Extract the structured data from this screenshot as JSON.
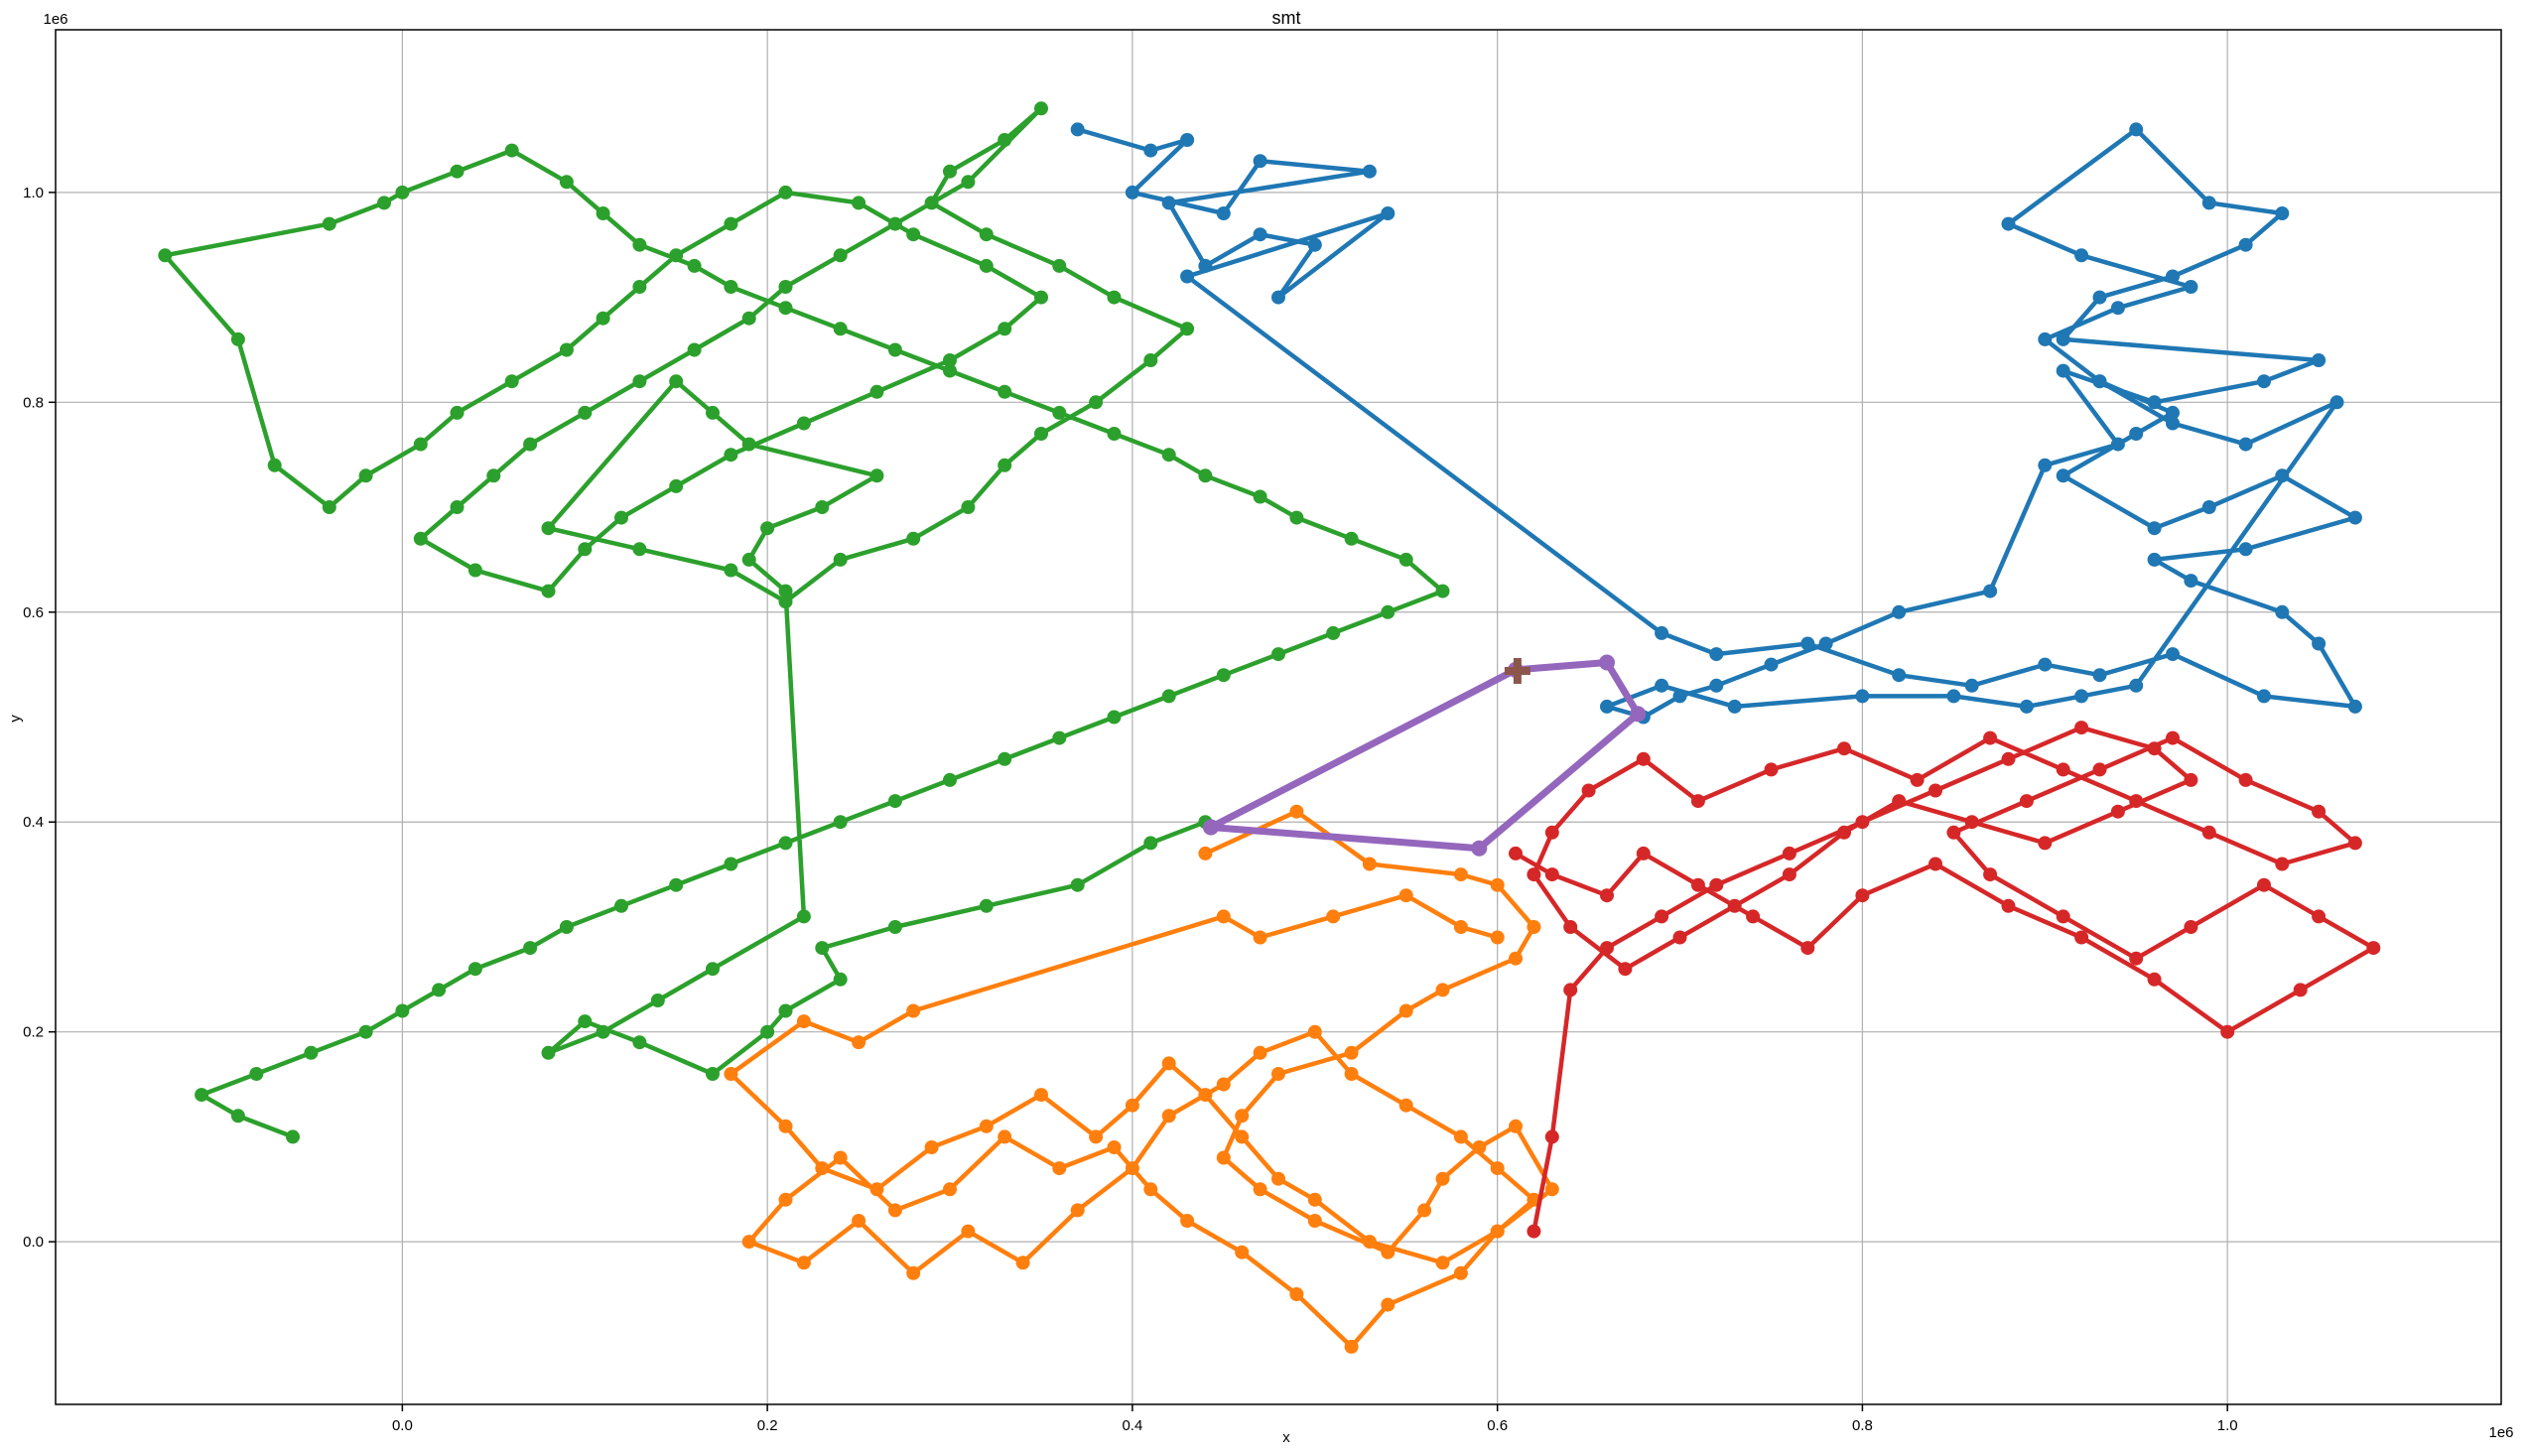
{
  "chart_data": {
    "type": "line",
    "title": "smt",
    "xlabel": "x",
    "ylabel": "y",
    "x_offset_label": "1e6",
    "y_offset_label": "1e6",
    "xlim": [
      -0.19,
      1.15
    ],
    "ylim": [
      -0.155,
      1.155
    ],
    "x_ticks": [
      0.0,
      0.2,
      0.4,
      0.6,
      0.8,
      1.0
    ],
    "x_tick_labels": [
      "0.0",
      "0.2",
      "0.4",
      "0.6",
      "0.8",
      "1.0"
    ],
    "y_ticks": [
      0.0,
      0.2,
      0.4,
      0.6,
      0.8,
      1.0
    ],
    "y_tick_labels": [
      "0.0",
      "0.2",
      "0.4",
      "0.6",
      "0.8",
      "1.0"
    ],
    "grid": true,
    "series": [
      {
        "color": "#1f77b4",
        "x": [
          0.37,
          0.41,
          0.43,
          0.4,
          0.45,
          0.47,
          0.53,
          0.42,
          0.44,
          0.47,
          0.5,
          0.48,
          0.54,
          0.43,
          0.69,
          0.72,
          0.77,
          0.82,
          0.86,
          0.9,
          0.93,
          0.97,
          1.02,
          1.07,
          1.05,
          1.03,
          0.98,
          0.96,
          1.01,
          1.07,
          1.03,
          0.99,
          0.96,
          0.91,
          0.95,
          0.97,
          0.93,
          0.9,
          0.94,
          0.98,
          0.92,
          0.88,
          0.95,
          0.99,
          1.03,
          1.01,
          0.97,
          0.93,
          0.91,
          1.05,
          1.02,
          0.96,
          0.91,
          0.94,
          0.9,
          0.87,
          0.82,
          0.78,
          0.75,
          0.72,
          0.7,
          0.68,
          0.66,
          0.69,
          0.73,
          0.8,
          0.85,
          0.89,
          0.92,
          0.95,
          1.06,
          1.01,
          0.97,
          0.93
        ],
        "y": [
          1.06,
          1.04,
          1.05,
          1.0,
          0.98,
          1.03,
          1.02,
          0.99,
          0.93,
          0.96,
          0.95,
          0.9,
          0.98,
          0.92,
          0.58,
          0.56,
          0.57,
          0.54,
          0.53,
          0.55,
          0.54,
          0.56,
          0.52,
          0.51,
          0.57,
          0.6,
          0.63,
          0.65,
          0.66,
          0.69,
          0.73,
          0.7,
          0.68,
          0.73,
          0.77,
          0.79,
          0.82,
          0.86,
          0.89,
          0.91,
          0.94,
          0.97,
          1.06,
          0.99,
          0.98,
          0.95,
          0.92,
          0.9,
          0.86,
          0.84,
          0.82,
          0.8,
          0.83,
          0.76,
          0.74,
          0.62,
          0.6,
          0.57,
          0.55,
          0.53,
          0.52,
          0.5,
          0.51,
          0.53,
          0.51,
          0.52,
          0.52,
          0.51,
          0.52,
          0.53,
          0.8,
          0.76,
          0.78,
          0.82
        ]
      },
      {
        "color": "#ff7f0e",
        "x": [
          0.44,
          0.49,
          0.53,
          0.58,
          0.6,
          0.62,
          0.61,
          0.57,
          0.55,
          0.52,
          0.48,
          0.46,
          0.45,
          0.47,
          0.5,
          0.54,
          0.56,
          0.57,
          0.59,
          0.61,
          0.63,
          0.6,
          0.58,
          0.54,
          0.52,
          0.49,
          0.46,
          0.43,
          0.41,
          0.39,
          0.36,
          0.33,
          0.3,
          0.27,
          0.24,
          0.21,
          0.19,
          0.22,
          0.25,
          0.28,
          0.31,
          0.34,
          0.37,
          0.4,
          0.42,
          0.45,
          0.47,
          0.5,
          0.52,
          0.55,
          0.58,
          0.6,
          0.62,
          0.6,
          0.57,
          0.53,
          0.5,
          0.48,
          0.46,
          0.44,
          0.42,
          0.4,
          0.38,
          0.35,
          0.32,
          0.29,
          0.26,
          0.23,
          0.21,
          0.18,
          0.22,
          0.25,
          0.28,
          0.45,
          0.47,
          0.51,
          0.55,
          0.58,
          0.6
        ],
        "y": [
          0.37,
          0.41,
          0.36,
          0.35,
          0.34,
          0.3,
          0.27,
          0.24,
          0.22,
          0.18,
          0.16,
          0.12,
          0.08,
          0.05,
          0.02,
          -0.01,
          0.03,
          0.06,
          0.09,
          0.11,
          0.05,
          0.01,
          -0.03,
          -0.06,
          -0.1,
          -0.05,
          -0.01,
          0.02,
          0.05,
          0.09,
          0.07,
          0.1,
          0.05,
          0.03,
          0.08,
          0.04,
          0.0,
          -0.02,
          0.02,
          -0.03,
          0.01,
          -0.02,
          0.03,
          0.07,
          0.12,
          0.15,
          0.18,
          0.2,
          0.16,
          0.13,
          0.1,
          0.07,
          0.04,
          0.01,
          -0.02,
          0.0,
          0.04,
          0.06,
          0.1,
          0.14,
          0.17,
          0.13,
          0.1,
          0.14,
          0.11,
          0.09,
          0.05,
          0.07,
          0.11,
          0.16,
          0.21,
          0.19,
          0.22,
          0.31,
          0.29,
          0.31,
          0.33,
          0.3,
          0.29
        ]
      },
      {
        "color": "#2ca02c",
        "x": [
          0.44,
          0.41,
          0.37,
          0.32,
          0.27,
          0.23,
          0.24,
          0.21,
          0.2,
          0.17,
          0.13,
          0.1,
          0.08,
          0.11,
          0.14,
          0.17,
          0.22,
          0.21,
          0.19,
          0.2,
          0.23,
          0.26,
          0.19,
          0.17,
          0.15,
          0.08,
          0.13,
          0.18,
          0.21,
          0.24,
          0.28,
          0.31,
          0.33,
          0.35,
          0.38,
          0.41,
          0.43,
          0.39,
          0.36,
          0.32,
          0.29,
          0.3,
          0.33,
          0.35,
          0.31,
          0.27,
          0.24,
          0.21,
          0.19,
          0.16,
          0.13,
          0.1,
          0.07,
          0.05,
          0.03,
          0.01,
          0.04,
          0.08,
          0.1,
          0.12,
          0.15,
          0.18,
          0.22,
          0.26,
          0.3,
          0.33,
          0.35,
          0.32,
          0.28,
          0.25,
          0.21,
          0.18,
          0.15,
          0.13,
          0.11,
          0.09,
          0.06,
          0.03,
          0.01,
          -0.02,
          -0.04,
          -0.07,
          -0.09,
          -0.13,
          -0.04,
          -0.01,
          0.0,
          0.03,
          0.06,
          0.09,
          0.11,
          0.13,
          0.16,
          0.18,
          0.21,
          0.24,
          0.27,
          0.3,
          0.33,
          0.36,
          0.39,
          0.42,
          0.44,
          0.47,
          0.49,
          0.52,
          0.55,
          0.57,
          0.54,
          0.51,
          0.48,
          0.45,
          0.42,
          0.39,
          0.36,
          0.33,
          0.3,
          0.27,
          0.24,
          0.21,
          0.18,
          0.15,
          0.12,
          0.09,
          0.07,
          0.04,
          0.02,
          0.0,
          -0.02,
          -0.05,
          -0.08,
          -0.11,
          -0.09,
          -0.06
        ],
        "y": [
          0.4,
          0.38,
          0.34,
          0.32,
          0.3,
          0.28,
          0.25,
          0.22,
          0.2,
          0.16,
          0.19,
          0.21,
          0.18,
          0.2,
          0.23,
          0.26,
          0.31,
          0.62,
          0.65,
          0.68,
          0.7,
          0.73,
          0.76,
          0.79,
          0.82,
          0.68,
          0.66,
          0.64,
          0.61,
          0.65,
          0.67,
          0.7,
          0.74,
          0.77,
          0.8,
          0.84,
          0.87,
          0.9,
          0.93,
          0.96,
          0.99,
          1.02,
          1.05,
          1.08,
          1.01,
          0.97,
          0.94,
          0.91,
          0.88,
          0.85,
          0.82,
          0.79,
          0.76,
          0.73,
          0.7,
          0.67,
          0.64,
          0.62,
          0.66,
          0.69,
          0.72,
          0.75,
          0.78,
          0.81,
          0.84,
          0.87,
          0.9,
          0.93,
          0.96,
          0.99,
          1.0,
          0.97,
          0.94,
          0.91,
          0.88,
          0.85,
          0.82,
          0.79,
          0.76,
          0.73,
          0.7,
          0.74,
          0.86,
          0.94,
          0.97,
          0.99,
          1.0,
          1.02,
          1.04,
          1.01,
          0.98,
          0.95,
          0.93,
          0.91,
          0.89,
          0.87,
          0.85,
          0.83,
          0.81,
          0.79,
          0.77,
          0.75,
          0.73,
          0.71,
          0.69,
          0.67,
          0.65,
          0.62,
          0.6,
          0.58,
          0.56,
          0.54,
          0.52,
          0.5,
          0.48,
          0.46,
          0.44,
          0.42,
          0.4,
          0.38,
          0.36,
          0.34,
          0.32,
          0.3,
          0.28,
          0.26,
          0.24,
          0.22,
          0.2,
          0.18,
          0.16,
          0.14,
          0.12,
          0.1
        ]
      },
      {
        "color": "#d62728",
        "x": [
          0.61,
          0.63,
          0.66,
          0.68,
          0.71,
          0.74,
          0.77,
          0.8,
          0.84,
          0.88,
          0.92,
          0.96,
          1.0,
          1.04,
          1.08,
          1.05,
          1.02,
          0.98,
          0.95,
          0.91,
          0.87,
          0.85,
          0.89,
          0.93,
          0.97,
          1.01,
          1.05,
          1.07,
          1.03,
          0.99,
          0.95,
          0.91,
          0.87,
          0.83,
          0.79,
          0.75,
          0.71,
          0.68,
          0.65,
          0.63,
          0.62,
          0.64,
          0.67,
          0.7,
          0.73,
          0.76,
          0.79,
          0.82,
          0.86,
          0.9,
          0.94,
          0.98,
          0.96,
          0.92,
          0.88,
          0.84,
          0.8,
          0.76,
          0.72,
          0.69,
          0.66,
          0.64,
          0.63,
          0.62
        ],
        "y": [
          0.37,
          0.35,
          0.33,
          0.37,
          0.34,
          0.31,
          0.28,
          0.33,
          0.36,
          0.32,
          0.29,
          0.25,
          0.2,
          0.24,
          0.28,
          0.31,
          0.34,
          0.3,
          0.27,
          0.31,
          0.35,
          0.39,
          0.42,
          0.45,
          0.48,
          0.44,
          0.41,
          0.38,
          0.36,
          0.39,
          0.42,
          0.45,
          0.48,
          0.44,
          0.47,
          0.45,
          0.42,
          0.46,
          0.43,
          0.39,
          0.35,
          0.3,
          0.26,
          0.29,
          0.32,
          0.35,
          0.39,
          0.42,
          0.4,
          0.38,
          0.41,
          0.44,
          0.47,
          0.49,
          0.46,
          0.43,
          0.4,
          0.37,
          0.34,
          0.31,
          0.28,
          0.24,
          0.1,
          0.01
        ]
      },
      {
        "color": "#9467bd",
        "x": [
          0.443,
          0.61,
          0.66,
          0.677,
          0.59,
          0.443
        ],
        "y": [
          0.395,
          0.545,
          0.552,
          0.503,
          0.375,
          0.395
        ],
        "thick": true
      }
    ],
    "marker": {
      "color": "#8c564b",
      "x": 0.611,
      "y": 0.544,
      "symbol": "plus"
    }
  }
}
